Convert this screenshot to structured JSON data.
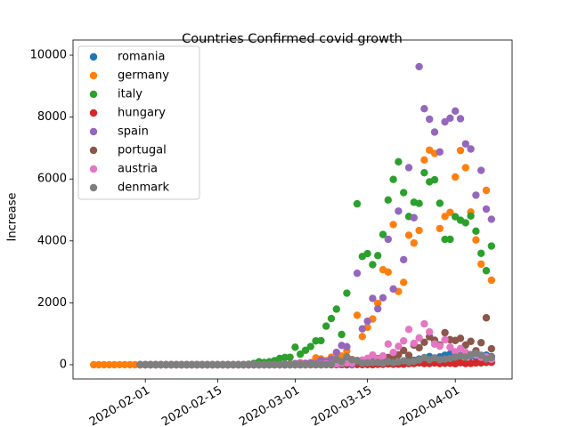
{
  "chart_data": {
    "type": "scatter",
    "title": "Countries Confirmed covid growth",
    "y_label": "Increase",
    "x": [
      "2020-01-22",
      "2020-01-23",
      "2020-01-24",
      "2020-01-25",
      "2020-01-26",
      "2020-01-27",
      "2020-01-28",
      "2020-01-29",
      "2020-01-30",
      "2020-01-31",
      "2020-02-01",
      "2020-02-02",
      "2020-02-03",
      "2020-02-04",
      "2020-02-05",
      "2020-02-06",
      "2020-02-07",
      "2020-02-08",
      "2020-02-09",
      "2020-02-10",
      "2020-02-11",
      "2020-02-12",
      "2020-02-13",
      "2020-02-14",
      "2020-02-15",
      "2020-02-16",
      "2020-02-17",
      "2020-02-18",
      "2020-02-19",
      "2020-02-20",
      "2020-02-21",
      "2020-02-22",
      "2020-02-23",
      "2020-02-24",
      "2020-02-25",
      "2020-02-26",
      "2020-02-27",
      "2020-02-28",
      "2020-02-29",
      "2020-03-01",
      "2020-03-02",
      "2020-03-03",
      "2020-03-04",
      "2020-03-05",
      "2020-03-06",
      "2020-03-07",
      "2020-03-08",
      "2020-03-09",
      "2020-03-10",
      "2020-03-11",
      "2020-03-12",
      "2020-03-13",
      "2020-03-14",
      "2020-03-15",
      "2020-03-16",
      "2020-03-17",
      "2020-03-18",
      "2020-03-19",
      "2020-03-20",
      "2020-03-21",
      "2020-03-22",
      "2020-03-23",
      "2020-03-24",
      "2020-03-25",
      "2020-03-26",
      "2020-03-27",
      "2020-03-28",
      "2020-03-29",
      "2020-03-30",
      "2020-03-31",
      "2020-04-01",
      "2020-04-02",
      "2020-04-03",
      "2020-04-04",
      "2020-04-05",
      "2020-04-06",
      "2020-04-07",
      "2020-04-08"
    ],
    "series": [
      {
        "name": "romania",
        "color": "#1f77b4",
        "values": [
          null,
          null,
          null,
          null,
          null,
          null,
          null,
          null,
          null,
          0,
          0,
          0,
          0,
          0,
          0,
          0,
          0,
          0,
          0,
          0,
          0,
          0,
          0,
          0,
          0,
          0,
          0,
          0,
          0,
          0,
          0,
          0,
          0,
          0,
          0,
          0,
          0,
          0,
          0,
          0,
          0,
          2,
          0,
          1,
          0,
          2,
          0,
          2,
          4,
          2,
          18,
          13,
          9,
          43,
          29,
          80,
          12,
          31,
          94,
          25,
          59,
          143,
          143,
          186,
          123,
          263,
          186,
          253,
          308,
          347,
          192,
          296,
          285,
          275,
          232,
          193,
          309,
          260
        ]
      },
      {
        "name": "germany",
        "color": "#ff7f0e",
        "values": [
          0,
          0,
          0,
          0,
          0,
          1,
          3,
          0,
          0,
          1,
          3,
          0,
          2,
          2,
          0,
          1,
          1,
          0,
          0,
          2,
          0,
          0,
          0,
          0,
          0,
          0,
          0,
          0,
          0,
          0,
          0,
          0,
          0,
          0,
          0,
          10,
          19,
          2,
          31,
          34,
          66,
          38,
          66,
          220,
          188,
          129,
          241,
          136,
          281,
          451,
          170,
          1597,
          910,
          1210,
          1477,
          1985,
          3070,
          2993,
          4528,
          2365,
          2660,
          4183,
          3930,
          4337,
          6615,
          6933,
          6824,
          4400,
          4790,
          4923,
          6064,
          6922,
          6365,
          4933,
          4031,
          3251,
          5633,
          2731
        ]
      },
      {
        "name": "italy",
        "color": "#2ca02c",
        "values": [
          null,
          null,
          null,
          null,
          null,
          null,
          null,
          null,
          null,
          2,
          0,
          0,
          0,
          0,
          0,
          0,
          1,
          0,
          0,
          0,
          0,
          0,
          0,
          0,
          0,
          0,
          0,
          0,
          0,
          0,
          17,
          42,
          93,
          74,
          93,
          131,
          202,
          233,
          240,
          566,
          342,
          466,
          587,
          769,
          778,
          1247,
          1492,
          1797,
          977,
          2313,
          0,
          5198,
          3497,
          3590,
          3233,
          3526,
          4207,
          5322,
          5986,
          6557,
          5560,
          4789,
          5249,
          5210,
          6203,
          5909,
          5974,
          5217,
          4050,
          4053,
          4782,
          4668,
          4585,
          4805,
          4316,
          3599,
          3039,
          3836
        ]
      },
      {
        "name": "hungary",
        "color": "#d62728",
        "values": [
          null,
          null,
          null,
          null,
          null,
          null,
          null,
          null,
          null,
          0,
          0,
          0,
          0,
          0,
          0,
          0,
          0,
          0,
          0,
          0,
          0,
          0,
          0,
          0,
          0,
          0,
          0,
          0,
          0,
          0,
          0,
          0,
          0,
          0,
          0,
          0,
          0,
          0,
          0,
          0,
          0,
          0,
          2,
          0,
          0,
          1,
          4,
          3,
          4,
          0,
          3,
          6,
          1,
          7,
          0,
          11,
          8,
          23,
          12,
          18,
          16,
          35,
          39,
          61,
          39,
          39,
          56,
          39,
          45,
          45,
          33,
          62,
          38,
          43,
          55,
          60,
          73,
          78
        ]
      },
      {
        "name": "spain",
        "color": "#9467bd",
        "values": [
          null,
          null,
          null,
          null,
          null,
          null,
          null,
          null,
          null,
          0,
          0,
          0,
          0,
          0,
          0,
          0,
          0,
          0,
          1,
          0,
          0,
          0,
          0,
          0,
          0,
          0,
          0,
          0,
          0,
          0,
          0,
          0,
          0,
          0,
          4,
          2,
          2,
          20,
          13,
          39,
          36,
          45,
          57,
          37,
          141,
          100,
          173,
          400,
          622,
          582,
          0,
          2955,
          1159,
          1407,
          2144,
          1806,
          2162,
          4053,
          2447,
          4964,
          3394,
          6368,
          4749,
          9630,
          8271,
          7933,
          7516,
          6875,
          7846,
          7967,
          8195,
          7947,
          7134,
          6969,
          5478,
          6278,
          5029,
          4700
        ]
      },
      {
        "name": "portugal",
        "color": "#8c564b",
        "values": [
          null,
          null,
          null,
          null,
          null,
          null,
          null,
          null,
          null,
          0,
          0,
          0,
          0,
          0,
          0,
          0,
          0,
          0,
          0,
          0,
          0,
          0,
          0,
          0,
          0,
          0,
          0,
          0,
          0,
          0,
          0,
          0,
          0,
          0,
          0,
          0,
          0,
          0,
          0,
          0,
          2,
          0,
          2,
          3,
          4,
          8,
          9,
          11,
          20,
          18,
          53,
          72,
          59,
          76,
          117,
          194,
          143,
          235,
          260,
          320,
          460,
          302,
          633,
          549,
          724,
          902,
          792,
          638,
          1035,
          808,
          783,
          852,
          638,
          754,
          452,
          712,
          1516,
          516
        ]
      },
      {
        "name": "austria",
        "color": "#e377c2",
        "values": [
          null,
          null,
          null,
          null,
          null,
          null,
          null,
          null,
          null,
          0,
          0,
          0,
          0,
          0,
          0,
          0,
          0,
          0,
          0,
          0,
          0,
          0,
          0,
          0,
          0,
          0,
          0,
          0,
          0,
          0,
          0,
          0,
          0,
          0,
          2,
          0,
          1,
          1,
          6,
          5,
          8,
          3,
          6,
          12,
          14,
          25,
          25,
          29,
          51,
          64,
          56,
          143,
          151,
          205,
          314,
          177,
          286,
          669,
          396,
          593,
          771,
          1141,
          692,
          866,
          1321,
          1061,
          668,
          599,
          805,
          564,
          418,
          522,
          395,
          309,
          314,
          241,
          256,
          174
        ]
      },
      {
        "name": "denmark",
        "color": "#7f7f7f",
        "values": [
          null,
          null,
          null,
          null,
          null,
          null,
          null,
          null,
          null,
          0,
          0,
          0,
          0,
          0,
          0,
          0,
          0,
          0,
          0,
          0,
          0,
          0,
          0,
          0,
          0,
          0,
          0,
          0,
          0,
          0,
          0,
          0,
          0,
          0,
          0,
          0,
          0,
          0,
          0,
          0,
          3,
          1,
          6,
          10,
          5,
          1,
          18,
          172,
          99,
          252,
          160,
          130,
          50,
          63,
          66,
          76,
          44,
          98,
          67,
          92,
          128,
          86,
          113,
          155,
          232,
          159,
          220,
          161,
          183,
          204,
          246,
          281,
          242,
          327,
          373,
          308,
          182,
          233
        ]
      }
    ],
    "xlim": [
      "2020-01-18",
      "2020-04-12"
    ],
    "xticks": [
      "2020-02-01",
      "2020-02-15",
      "2020-03-01",
      "2020-03-15",
      "2020-04-01"
    ],
    "ylim": [
      -460,
      10490
    ],
    "yticks": [
      0,
      2000,
      4000,
      6000,
      8000,
      10000
    ],
    "legend": "upper left",
    "grid": false
  }
}
